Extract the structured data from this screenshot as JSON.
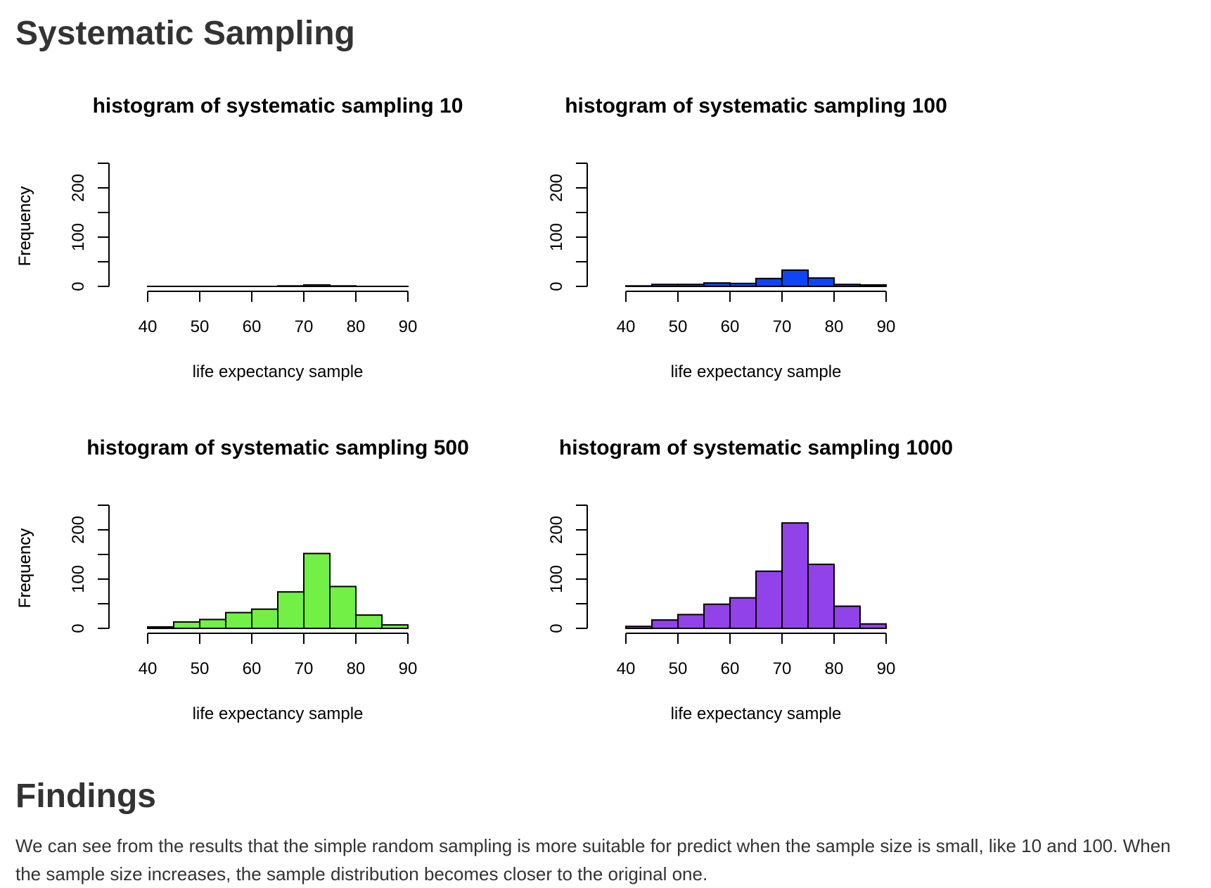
{
  "header": {
    "title": "Systematic Sampling"
  },
  "chart_data": [
    {
      "type": "bar",
      "title": "histogram of systematic sampling 10",
      "xlabel": "life expectancy sample",
      "ylabel": "Frequency",
      "xlim": [
        40,
        90
      ],
      "ylim": [
        0,
        250
      ],
      "x_ticks": [
        "40",
        "50",
        "60",
        "70",
        "80",
        "90"
      ],
      "y_ticks": [
        "0",
        "100",
        "200"
      ],
      "bins": [
        [
          40,
          45
        ],
        [
          45,
          50
        ],
        [
          50,
          55
        ],
        [
          55,
          60
        ],
        [
          60,
          65
        ],
        [
          65,
          70
        ],
        [
          70,
          75
        ],
        [
          75,
          80
        ],
        [
          80,
          85
        ],
        [
          85,
          90
        ]
      ],
      "values": [
        0,
        0,
        0,
        0,
        0,
        1,
        3,
        1,
        0,
        0
      ],
      "color": "#ffffff"
    },
    {
      "type": "bar",
      "title": "histogram of systematic sampling 100",
      "xlabel": "life expectancy sample",
      "ylabel": "Frequency",
      "xlim": [
        40,
        90
      ],
      "ylim": [
        0,
        250
      ],
      "x_ticks": [
        "40",
        "50",
        "60",
        "70",
        "80",
        "90"
      ],
      "y_ticks": [
        "0",
        "100",
        "200"
      ],
      "bins": [
        [
          40,
          45
        ],
        [
          45,
          50
        ],
        [
          50,
          55
        ],
        [
          55,
          60
        ],
        [
          60,
          65
        ],
        [
          65,
          70
        ],
        [
          70,
          75
        ],
        [
          75,
          80
        ],
        [
          80,
          85
        ],
        [
          85,
          90
        ]
      ],
      "values": [
        1,
        4,
        4,
        7,
        6,
        16,
        33,
        17,
        4,
        3
      ],
      "color": "#0d46f5"
    },
    {
      "type": "bar",
      "title": "histogram of systematic sampling 500",
      "xlabel": "life expectancy sample",
      "ylabel": "Frequency",
      "xlim": [
        40,
        90
      ],
      "ylim": [
        0,
        250
      ],
      "x_ticks": [
        "40",
        "50",
        "60",
        "70",
        "80",
        "90"
      ],
      "y_ticks": [
        "0",
        "100",
        "200"
      ],
      "bins": [
        [
          40,
          45
        ],
        [
          45,
          50
        ],
        [
          50,
          55
        ],
        [
          55,
          60
        ],
        [
          60,
          65
        ],
        [
          65,
          70
        ],
        [
          70,
          75
        ],
        [
          75,
          80
        ],
        [
          80,
          85
        ],
        [
          85,
          90
        ]
      ],
      "values": [
        3,
        13,
        18,
        32,
        39,
        74,
        152,
        85,
        27,
        7
      ],
      "color": "#72f045"
    },
    {
      "type": "bar",
      "title": "histogram of systematic sampling 1000",
      "xlabel": "life expectancy sample",
      "ylabel": "Frequency",
      "xlim": [
        40,
        90
      ],
      "ylim": [
        0,
        250
      ],
      "x_ticks": [
        "40",
        "50",
        "60",
        "70",
        "80",
        "90"
      ],
      "y_ticks": [
        "0",
        "100",
        "200"
      ],
      "bins": [
        [
          40,
          45
        ],
        [
          45,
          50
        ],
        [
          50,
          55
        ],
        [
          55,
          60
        ],
        [
          60,
          65
        ],
        [
          65,
          70
        ],
        [
          70,
          75
        ],
        [
          75,
          80
        ],
        [
          80,
          85
        ],
        [
          85,
          90
        ]
      ],
      "values": [
        4,
        17,
        28,
        49,
        62,
        116,
        214,
        130,
        45,
        9
      ],
      "color": "#9142e8"
    }
  ],
  "findings": {
    "title": "Findings",
    "text": "We can see from the results that the simple random sampling is more suitable for predict when the sample size is small, like 10 and 100. When the sample size increases, the sample distribution becomes closer to the original one."
  }
}
